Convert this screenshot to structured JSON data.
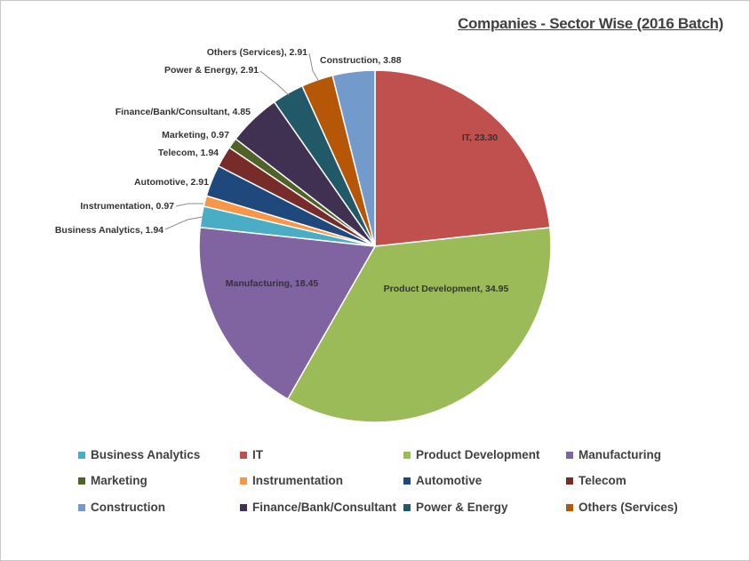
{
  "chart_data": {
    "type": "pie",
    "title": "Companies - Sector Wise (2016 Batch)",
    "slices": [
      {
        "name": "IT",
        "value": 23.3,
        "label": "IT, 23.30",
        "color": "#C0504D"
      },
      {
        "name": "Product Development",
        "value": 34.95,
        "label": "Product Development, 34.95",
        "color": "#9BBB59"
      },
      {
        "name": "Manufacturing",
        "value": 18.45,
        "label": "Manufacturing, 18.45",
        "color": "#8064A2"
      },
      {
        "name": "Business Analytics",
        "value": 1.94,
        "label": "Business Analytics, 1.94",
        "color": "#4BACC6"
      },
      {
        "name": "Instrumentation",
        "value": 0.97,
        "label": "Instrumentation, 0.97",
        "color": "#F79646"
      },
      {
        "name": "Automotive",
        "value": 2.91,
        "label": "Automotive, 2.91",
        "color": "#1F497D"
      },
      {
        "name": "Telecom",
        "value": 1.94,
        "label": "Telecom, 1.94",
        "color": "#772C2A"
      },
      {
        "name": "Marketing",
        "value": 0.97,
        "label": "Marketing, 0.97",
        "color": "#4F6228"
      },
      {
        "name": "Finance/Bank/Consultant",
        "value": 4.85,
        "label": "Finance/Bank/Consultant, 4.85",
        "color": "#403152"
      },
      {
        "name": "Power & Energy",
        "value": 2.91,
        "label": "Power & Energy, 2.91",
        "color": "#215968"
      },
      {
        "name": "Others (Services)",
        "value": 2.91,
        "label": "Others (Services), 2.91",
        "color": "#B65708"
      },
      {
        "name": "Construction",
        "value": 3.88,
        "label": "Construction, 3.88",
        "color": "#729ACA"
      }
    ],
    "legend": {
      "placement": "bottom",
      "entries": [
        "Business Analytics",
        "IT",
        "Product Development",
        "Manufacturing",
        "Marketing",
        "Instrumentation",
        "Automotive",
        "Telecom",
        "Construction",
        "Finance/Bank/Consultant",
        "Power & Energy",
        "Others (Services)"
      ]
    }
  }
}
